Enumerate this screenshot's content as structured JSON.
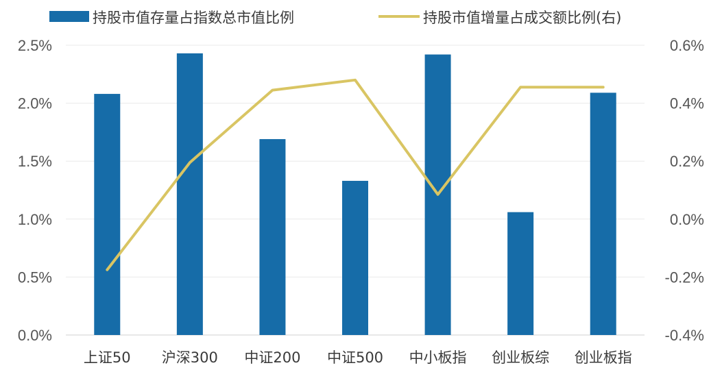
{
  "chart_data": {
    "type": "bar",
    "categories": [
      "上证50",
      "沪深300",
      "中证200",
      "中证500",
      "中小板指",
      "创业板综",
      "创业板指"
    ],
    "series": [
      {
        "name": "持股市值存量占指数总市值比例",
        "type": "bar",
        "axis": "left",
        "values": [
          2.08,
          2.43,
          1.69,
          1.33,
          2.42,
          1.06,
          2.09
        ]
      },
      {
        "name": "持股市值增量占成交额比例(右)",
        "type": "line",
        "axis": "right",
        "values": [
          -0.175,
          0.195,
          0.445,
          0.48,
          0.085,
          0.455,
          0.455
        ]
      }
    ],
    "y_left": {
      "min": 0.0,
      "max": 2.5,
      "ticks": [
        "0.0%",
        "0.5%",
        "1.0%",
        "1.5%",
        "2.0%",
        "2.5%"
      ]
    },
    "y_right": {
      "min": -0.4,
      "max": 0.6,
      "ticks": [
        "-0.4%",
        "-0.2%",
        "0.0%",
        "0.2%",
        "0.4%",
        "0.6%"
      ]
    },
    "grid": true,
    "legend_position": "top",
    "colors": {
      "bar": "#166ca8",
      "line": "#d9c563",
      "grid": "#e9e9e9"
    }
  }
}
